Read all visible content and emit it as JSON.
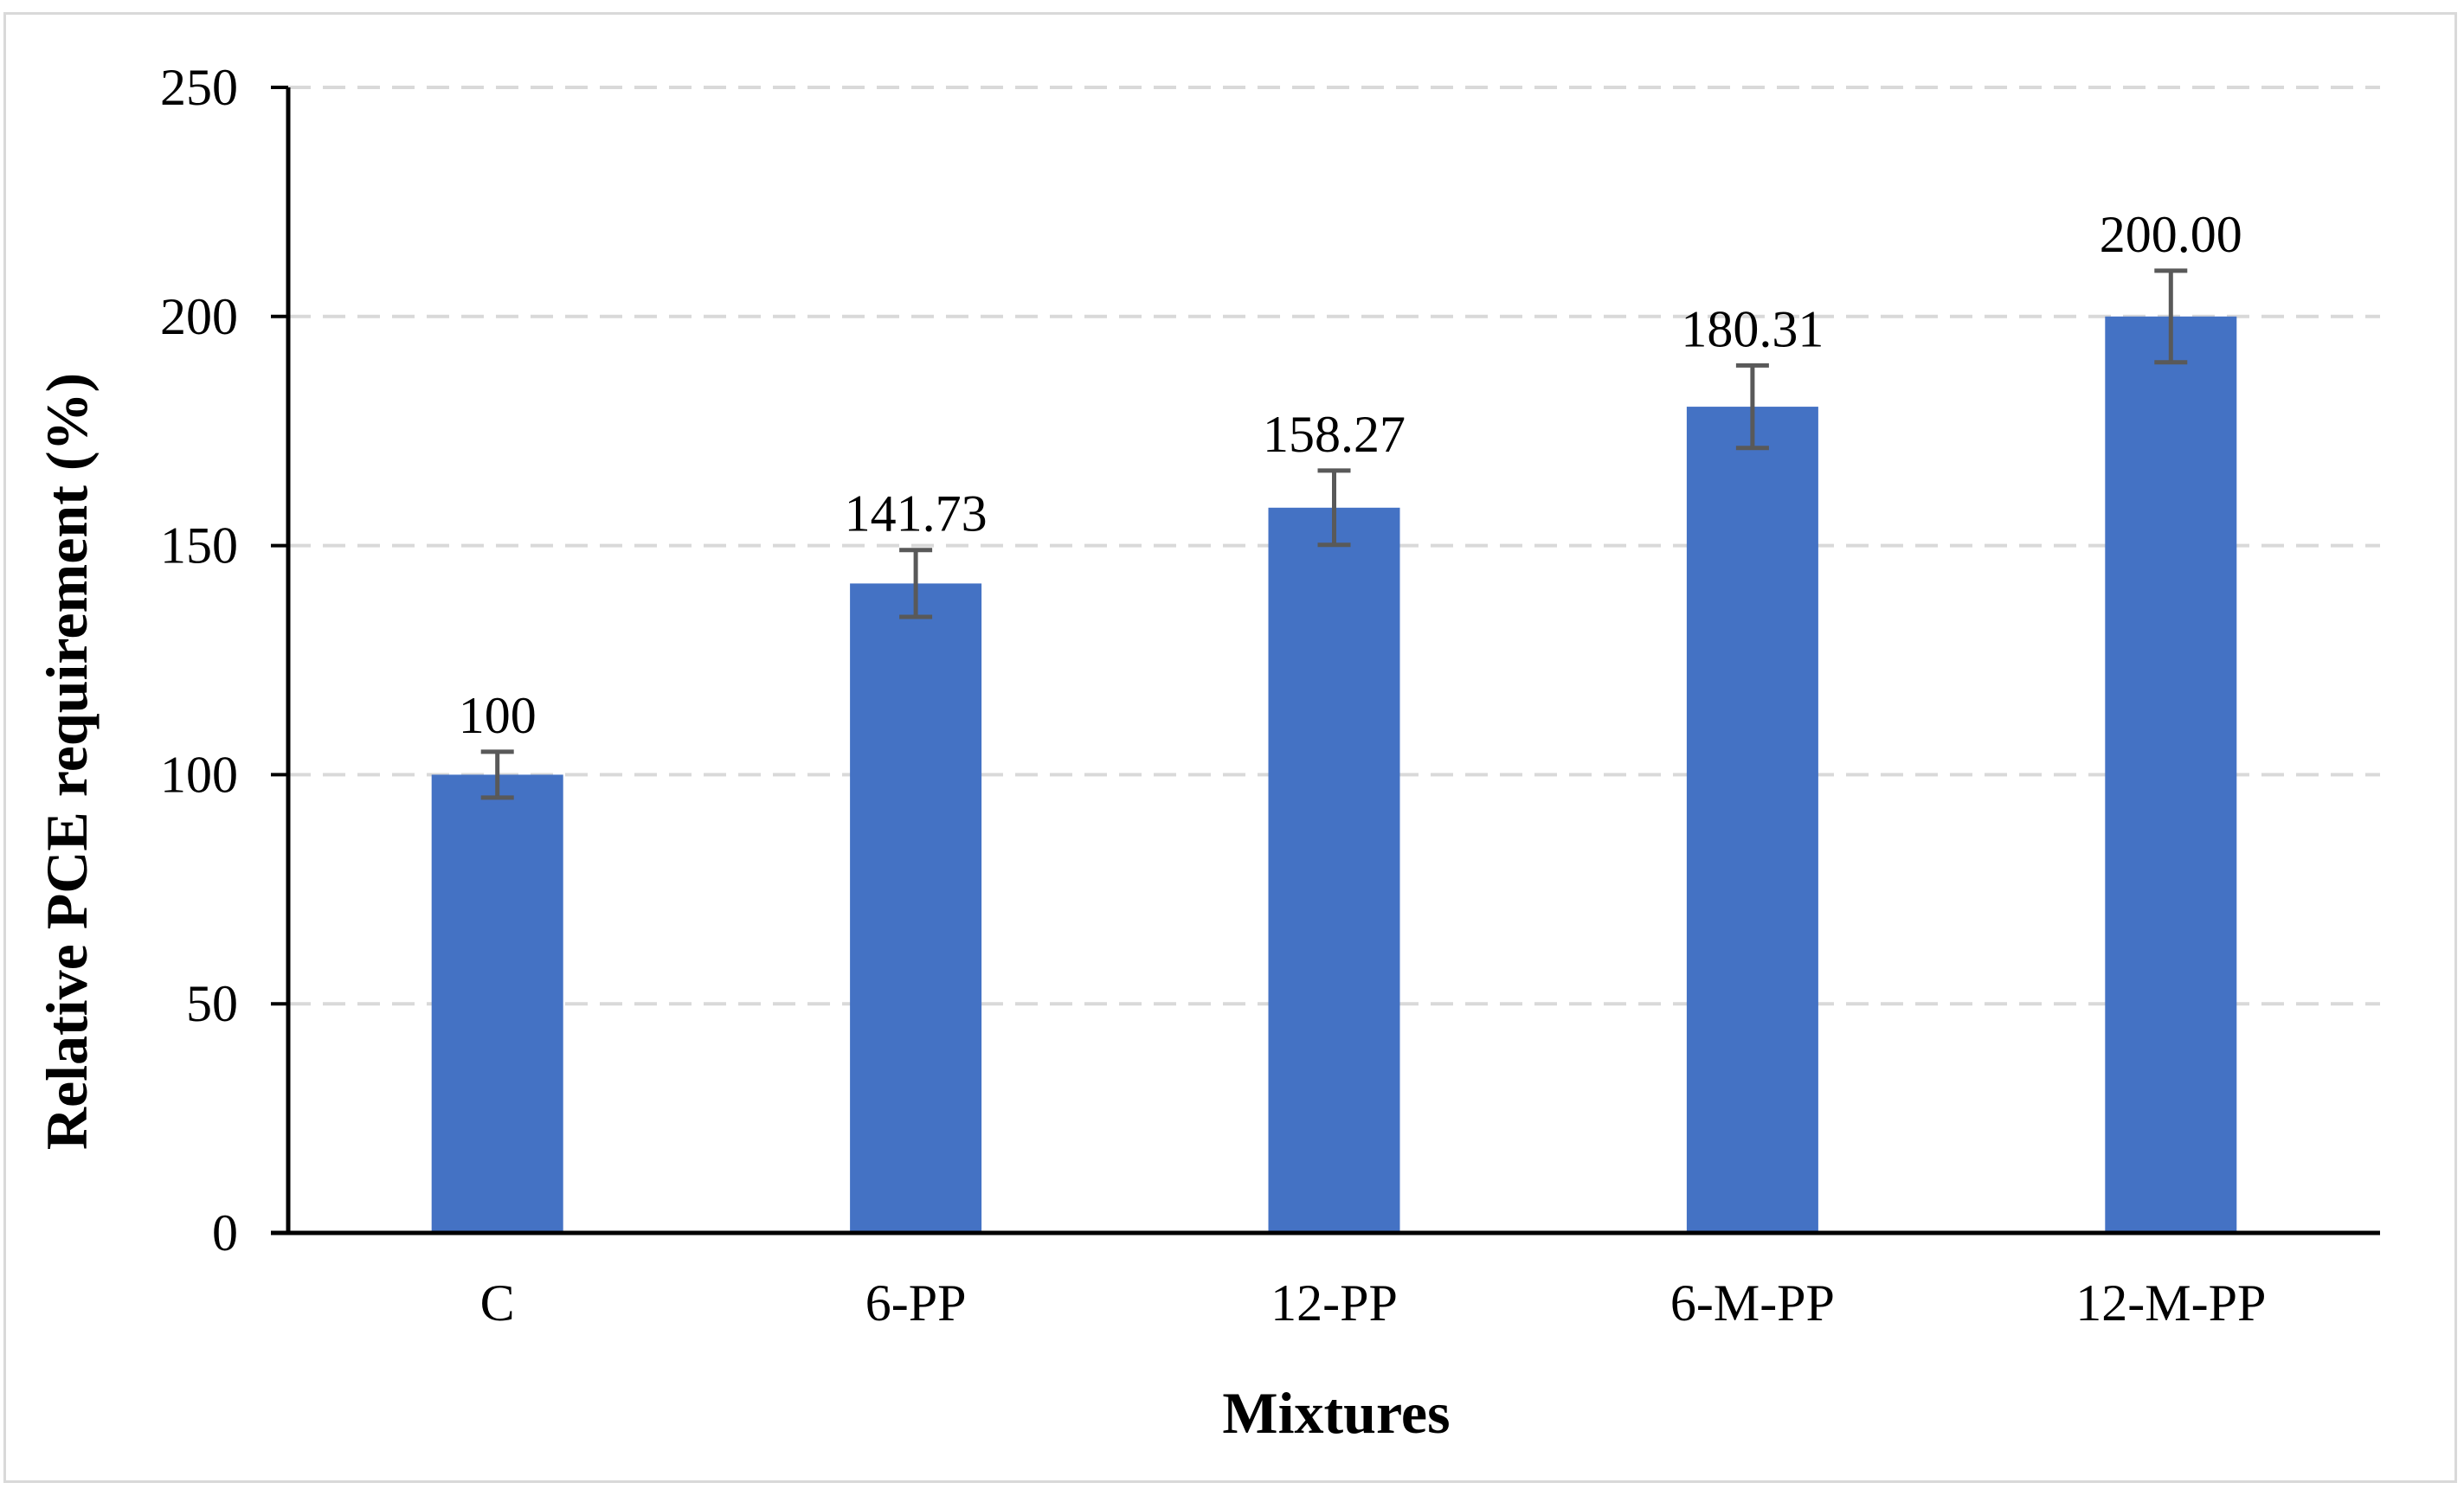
{
  "chart_data": {
    "type": "bar",
    "title": "",
    "xlabel": "Mixtures",
    "ylabel": "Relative PCE requirement (%)",
    "categories": [
      "C",
      "6-PP",
      "12-PP",
      "6-M-PP",
      "12-M-PP"
    ],
    "values": [
      100,
      141.73,
      158.27,
      180.31,
      200.0
    ],
    "data_labels": [
      "100",
      "141.73",
      "158.27",
      "180.31",
      "200.00"
    ],
    "error_bars": [
      5,
      7.3,
      8.1,
      9.0,
      10.0
    ],
    "ylim": [
      0,
      250
    ],
    "yticks": [
      0,
      50,
      100,
      150,
      200,
      250
    ],
    "ytick_labels": [
      "0",
      "50",
      "100",
      "150",
      "200",
      "250"
    ],
    "grid": "horizontal dashed",
    "legend": "none"
  },
  "colors": {
    "bar": "#4472c4",
    "error_bar": "#595959",
    "gridline": "#d9d9d9",
    "axis": "#000000",
    "frame": "#d9d9d9"
  }
}
